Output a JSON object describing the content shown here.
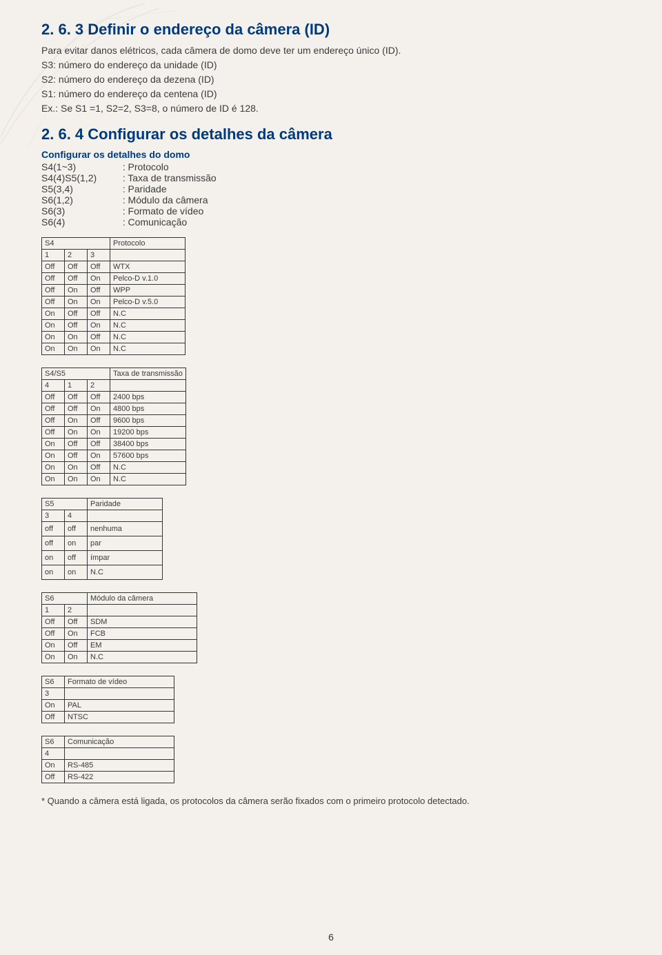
{
  "page_number": "6",
  "section1": {
    "heading": "2. 6. 3  Definir o endereço da câmera (ID)",
    "p1": "Para evitar danos elétricos, cada câmera de domo deve ter um endereço único (ID).",
    "p2": "S3: número do endereço da unidade (ID)",
    "p3": "S2: número do endereço da dezena (ID)",
    "p4": "S1: número do endereço da centena (ID)",
    "p5": "Ex.: Se S1 =1, S2=2, S3=8, o número de ID é 128."
  },
  "section2": {
    "heading": "2. 6. 4  Configurar os detalhes da câmera",
    "subhead": "Configurar os detalhes do domo",
    "defs": [
      {
        "k": "S4(1~3)",
        "v": ": Protocolo"
      },
      {
        "k": "S4(4)S5(1,2)",
        "v": ": Taxa de transmissão"
      },
      {
        "k": "S5(3,4)",
        "v": ": Paridade"
      },
      {
        "k": "S6(1,2)",
        "v": ": Módulo da câmera"
      },
      {
        "k": "S6(3)",
        "v": ": Formato de vídeo"
      },
      {
        "k": "S6(4)",
        "v": ": Comunicação"
      }
    ]
  },
  "table_protocol": {
    "title_left": "S4",
    "title_right": "Protocolo",
    "header": [
      "1",
      "2",
      "3"
    ],
    "rows": [
      [
        "Off",
        "Off",
        "Off",
        "WTX"
      ],
      [
        "Off",
        "Off",
        "On",
        "Pelco-D v.1.0"
      ],
      [
        "Off",
        "On",
        "Off",
        "WPP"
      ],
      [
        "Off",
        "On",
        "On",
        "Pelco-D v.5.0"
      ],
      [
        "On",
        "Off",
        "Off",
        "N.C"
      ],
      [
        "On",
        "Off",
        "On",
        "N.C"
      ],
      [
        "On",
        "On",
        "Off",
        "N.C"
      ],
      [
        "On",
        "On",
        "On",
        "N.C"
      ]
    ]
  },
  "table_baud": {
    "title_left": "S4/S5",
    "title_right": "Taxa de transmissão",
    "header": [
      "4",
      "1",
      "2"
    ],
    "rows": [
      [
        "Off",
        "Off",
        "Off",
        "2400 bps"
      ],
      [
        "Off",
        "Off",
        "On",
        "4800 bps"
      ],
      [
        "Off",
        "On",
        "Off",
        "9600 bps"
      ],
      [
        "Off",
        "On",
        "On",
        "19200 bps"
      ],
      [
        "On",
        "Off",
        "Off",
        "38400 bps"
      ],
      [
        "On",
        "Off",
        "On",
        "57600 bps"
      ],
      [
        "On",
        "On",
        "Off",
        "N.C"
      ],
      [
        "On",
        "On",
        "On",
        "N.C"
      ]
    ]
  },
  "table_parity": {
    "title_left": "S5",
    "title_right": "Paridade",
    "header": [
      "3",
      "4"
    ],
    "rows": [
      [
        "off",
        "off",
        "nenhuma"
      ],
      [
        "off",
        "on",
        "par"
      ],
      [
        "on",
        "off",
        "ímpar"
      ],
      [
        "on",
        "on",
        "N.C"
      ]
    ]
  },
  "table_module": {
    "title_left": "S6",
    "title_right": "Módulo da câmera",
    "header": [
      "1",
      "2"
    ],
    "rows": [
      [
        "Off",
        "Off",
        "SDM"
      ],
      [
        "Off",
        "On",
        "FCB"
      ],
      [
        "On",
        "Off",
        "EM"
      ],
      [
        "On",
        "On",
        "N.C"
      ]
    ]
  },
  "table_video": {
    "title_left": "S6",
    "title_right": "Formato de vídeo",
    "header": [
      "3"
    ],
    "rows": [
      [
        "On",
        "PAL"
      ],
      [
        "Off",
        "NTSC"
      ]
    ]
  },
  "table_comm": {
    "title_left": "S6",
    "title_right": "Comunicação",
    "header": [
      "4"
    ],
    "rows": [
      [
        "On",
        "RS-485"
      ],
      [
        "Off",
        "RS-422"
      ]
    ]
  },
  "footnote": "* Quando a câmera está ligada, os protocolos da câmera serão fixados com o primeiro protocolo detectado.",
  "colors": {
    "heading": "#003a7a",
    "text": "#3a3a3a",
    "table_border": "#333333",
    "background": "#f4f1ec",
    "curve_stroke": "#d8d2c6"
  }
}
